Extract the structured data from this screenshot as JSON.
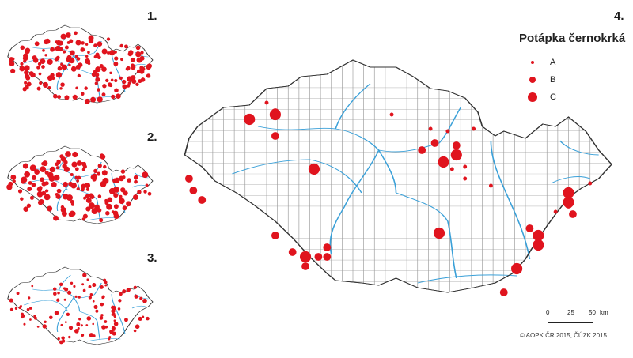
{
  "panels": [
    "1.",
    "2.",
    "3.",
    "4."
  ],
  "legend": {
    "title": "Potápka černokrká",
    "classes": [
      "A",
      "B",
      "C"
    ]
  },
  "scale": {
    "ticks": [
      "0",
      "25",
      "50"
    ],
    "unit": "km"
  },
  "copyright": "© AOPK ČR 2015, ČÚZK 2015",
  "colors": {
    "point": "#e0141e",
    "river": "#3aa0d8",
    "border": "#333333",
    "grid": "#9a9a9a"
  },
  "main_map": {
    "points": [
      {
        "x": 0.2,
        "y": 0.2,
        "c": "A"
      },
      {
        "x": 0.22,
        "y": 0.24,
        "c": "B"
      },
      {
        "x": 0.16,
        "y": 0.27,
        "c": "C"
      },
      {
        "x": 0.22,
        "y": 0.25,
        "c": "C"
      },
      {
        "x": 0.22,
        "y": 0.34,
        "c": "B"
      },
      {
        "x": 0.02,
        "y": 0.52,
        "c": "B"
      },
      {
        "x": 0.03,
        "y": 0.57,
        "c": "B"
      },
      {
        "x": 0.05,
        "y": 0.61,
        "c": "B"
      },
      {
        "x": 0.31,
        "y": 0.48,
        "c": "C"
      },
      {
        "x": 0.49,
        "y": 0.25,
        "c": "A"
      },
      {
        "x": 0.58,
        "y": 0.31,
        "c": "A"
      },
      {
        "x": 0.59,
        "y": 0.37,
        "c": "B"
      },
      {
        "x": 0.56,
        "y": 0.4,
        "c": "B"
      },
      {
        "x": 0.62,
        "y": 0.32,
        "c": "A"
      },
      {
        "x": 0.64,
        "y": 0.38,
        "c": "B"
      },
      {
        "x": 0.64,
        "y": 0.42,
        "c": "C"
      },
      {
        "x": 0.61,
        "y": 0.45,
        "c": "C"
      },
      {
        "x": 0.63,
        "y": 0.48,
        "c": "A"
      },
      {
        "x": 0.66,
        "y": 0.47,
        "c": "A"
      },
      {
        "x": 0.68,
        "y": 0.31,
        "c": "A"
      },
      {
        "x": 0.66,
        "y": 0.52,
        "c": "A"
      },
      {
        "x": 0.72,
        "y": 0.55,
        "c": "A"
      },
      {
        "x": 0.22,
        "y": 0.76,
        "c": "B"
      },
      {
        "x": 0.26,
        "y": 0.83,
        "c": "B"
      },
      {
        "x": 0.29,
        "y": 0.85,
        "c": "C"
      },
      {
        "x": 0.32,
        "y": 0.85,
        "c": "B"
      },
      {
        "x": 0.34,
        "y": 0.85,
        "c": "B"
      },
      {
        "x": 0.34,
        "y": 0.81,
        "c": "B"
      },
      {
        "x": 0.29,
        "y": 0.89,
        "c": "B"
      },
      {
        "x": 0.6,
        "y": 0.75,
        "c": "C"
      },
      {
        "x": 0.9,
        "y": 0.63,
        "c": "B"
      },
      {
        "x": 0.91,
        "y": 0.67,
        "c": "B"
      },
      {
        "x": 0.95,
        "y": 0.54,
        "c": "A"
      },
      {
        "x": 0.9,
        "y": 0.58,
        "c": "C"
      },
      {
        "x": 0.9,
        "y": 0.62,
        "c": "C"
      },
      {
        "x": 0.87,
        "y": 0.66,
        "c": "A"
      },
      {
        "x": 0.81,
        "y": 0.73,
        "c": "B"
      },
      {
        "x": 0.83,
        "y": 0.76,
        "c": "C"
      },
      {
        "x": 0.83,
        "y": 0.8,
        "c": "C"
      },
      {
        "x": 0.78,
        "y": 0.9,
        "c": "C"
      },
      {
        "x": 0.75,
        "y": 1.0,
        "c": "B"
      }
    ]
  }
}
